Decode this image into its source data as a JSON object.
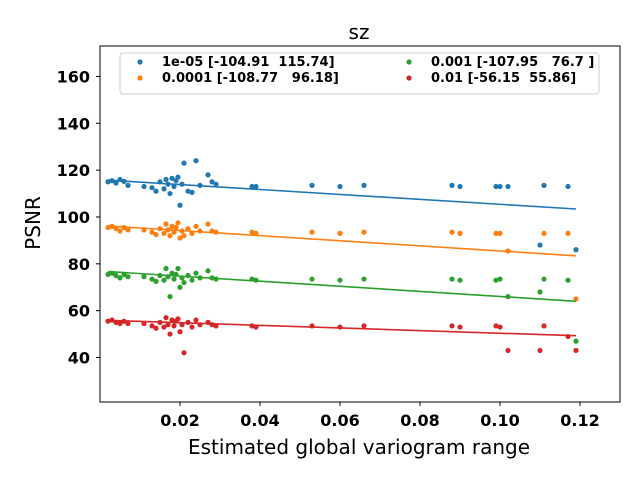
{
  "chart_data": {
    "type": "scatter",
    "title": "sz",
    "xlabel": "Estimated global variogram range",
    "ylabel": "PSNR",
    "xlim": [
      0.0,
      0.13
    ],
    "ylim": [
      21,
      173
    ],
    "xticks": [
      0.02,
      0.04,
      0.06,
      0.08,
      0.1,
      0.12
    ],
    "xtick_labels": [
      "0.02",
      "0.04",
      "0.06",
      "0.08",
      "0.10",
      "0.12"
    ],
    "yticks": [
      40,
      60,
      80,
      100,
      120,
      140,
      160
    ],
    "ytick_labels": [
      "40",
      "60",
      "80",
      "100",
      "120",
      "140",
      "160"
    ],
    "grid": false,
    "legend_position": "top",
    "legend_columns": 2,
    "x": [
      0.002,
      0.003,
      0.004,
      0.005,
      0.006,
      0.007,
      0.011,
      0.013,
      0.014,
      0.015,
      0.016,
      0.0165,
      0.017,
      0.0175,
      0.018,
      0.0185,
      0.019,
      0.0195,
      0.02,
      0.0205,
      0.021,
      0.022,
      0.023,
      0.024,
      0.025,
      0.027,
      0.028,
      0.029,
      0.038,
      0.039,
      0.053,
      0.06,
      0.066,
      0.088,
      0.09,
      0.099,
      0.1,
      0.102,
      0.11,
      0.111,
      0.117,
      0.119
    ],
    "series": [
      {
        "name": "1e-05 [-104.91  115.74]",
        "color": "#1f77b4",
        "y": [
          115.0,
          115.5,
          114.5,
          116.0,
          115.2,
          113.5,
          113.0,
          112.5,
          111.0,
          115.0,
          112.0,
          116.0,
          114.0,
          110.0,
          116.5,
          113.0,
          115.5,
          117.0,
          105.0,
          114.0,
          123.0,
          111.0,
          110.5,
          124.0,
          113.5,
          118.0,
          115.0,
          114.0,
          113.0,
          113.0,
          113.5,
          113.0,
          113.5,
          113.5,
          113.0,
          113.0,
          113.0,
          113.0,
          88.0,
          113.5,
          113.0,
          86.0
        ],
        "trend": [
          115.74,
          103.4
        ]
      },
      {
        "name": "0.0001 [-108.77   96.18]",
        "color": "#ff7f0e",
        "y": [
          95.5,
          96.0,
          95.0,
          94.0,
          95.5,
          94.5,
          94.5,
          93.5,
          92.5,
          95.0,
          93.0,
          97.0,
          94.5,
          92.0,
          96.0,
          93.5,
          95.5,
          97.5,
          91.0,
          94.0,
          92.0,
          95.0,
          93.0,
          96.0,
          94.0,
          97.0,
          94.0,
          93.5,
          93.5,
          93.0,
          93.5,
          93.0,
          93.5,
          93.5,
          93.0,
          93.0,
          93.0,
          85.5,
          68.0,
          93.0,
          93.0,
          65.0
        ],
        "trend": [
          96.18,
          83.4
        ]
      },
      {
        "name": "0.001 [-107.95   76.7 ]",
        "color": "#2ca02c",
        "y": [
          75.5,
          76.0,
          75.0,
          74.0,
          75.5,
          74.5,
          74.5,
          73.5,
          72.5,
          75.0,
          73.0,
          78.0,
          74.5,
          66.0,
          76.0,
          73.5,
          75.5,
          78.0,
          70.0,
          74.0,
          72.0,
          75.0,
          73.0,
          76.0,
          74.0,
          77.0,
          74.0,
          73.5,
          73.5,
          73.0,
          73.5,
          73.0,
          73.5,
          73.5,
          73.0,
          73.0,
          73.5,
          66.0,
          68.0,
          73.5,
          73.0,
          47.0
        ],
        "trend": [
          76.7,
          64.0
        ]
      },
      {
        "name": "0.01 [-56.15  55.86]",
        "color": "#d62728",
        "y": [
          55.5,
          56.0,
          55.0,
          54.5,
          55.5,
          54.5,
          54.5,
          53.5,
          52.5,
          55.0,
          53.0,
          57.0,
          54.0,
          50.0,
          56.0,
          53.5,
          55.5,
          56.5,
          51.0,
          54.0,
          42.0,
          55.0,
          53.0,
          56.0,
          54.0,
          55.0,
          54.0,
          53.5,
          53.5,
          53.0,
          53.5,
          53.0,
          53.5,
          53.5,
          53.0,
          53.5,
          53.0,
          43.0,
          43.0,
          53.5,
          49.0,
          43.0
        ],
        "trend": [
          55.86,
          49.3
        ]
      }
    ]
  }
}
